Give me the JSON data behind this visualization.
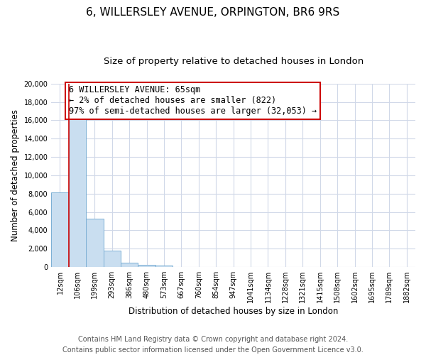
{
  "title": "6, WILLERSLEY AVENUE, ORPINGTON, BR6 9RS",
  "subtitle": "Size of property relative to detached houses in London",
  "xlabel": "Distribution of detached houses by size in London",
  "ylabel": "Number of detached properties",
  "categories": [
    "12sqm",
    "106sqm",
    "199sqm",
    "293sqm",
    "386sqm",
    "480sqm",
    "573sqm",
    "667sqm",
    "760sqm",
    "854sqm",
    "947sqm",
    "1041sqm",
    "1134sqm",
    "1228sqm",
    "1321sqm",
    "1415sqm",
    "1508sqm",
    "1602sqm",
    "1695sqm",
    "1789sqm",
    "1882sqm"
  ],
  "values": [
    8100,
    16600,
    5300,
    1800,
    500,
    270,
    180,
    0,
    0,
    0,
    0,
    0,
    0,
    0,
    0,
    0,
    0,
    0,
    0,
    0,
    0
  ],
  "bar_color": "#c9def0",
  "bar_edge_color": "#7bafd4",
  "annotation_line1": "6 WILLERSLEY AVENUE: 65sqm",
  "annotation_line2": "← 2% of detached houses are smaller (822)",
  "annotation_line3": "97% of semi-detached houses are larger (32,053) →",
  "annotation_box_color": "#ffffff",
  "annotation_box_edge_color": "#cc0000",
  "property_line_color": "#cc0000",
  "ylim": [
    0,
    20000
  ],
  "yticks": [
    0,
    2000,
    4000,
    6000,
    8000,
    10000,
    12000,
    14000,
    16000,
    18000,
    20000
  ],
  "footer_line1": "Contains HM Land Registry data © Crown copyright and database right 2024.",
  "footer_line2": "Contains public sector information licensed under the Open Government Licence v3.0.",
  "background_color": "#ffffff",
  "plot_bg_color": "#ffffff",
  "grid_color": "#d0d8e8",
  "title_fontsize": 11,
  "subtitle_fontsize": 9.5,
  "axis_label_fontsize": 8.5,
  "tick_fontsize": 7,
  "annotation_fontsize": 8.5,
  "footer_fontsize": 7
}
